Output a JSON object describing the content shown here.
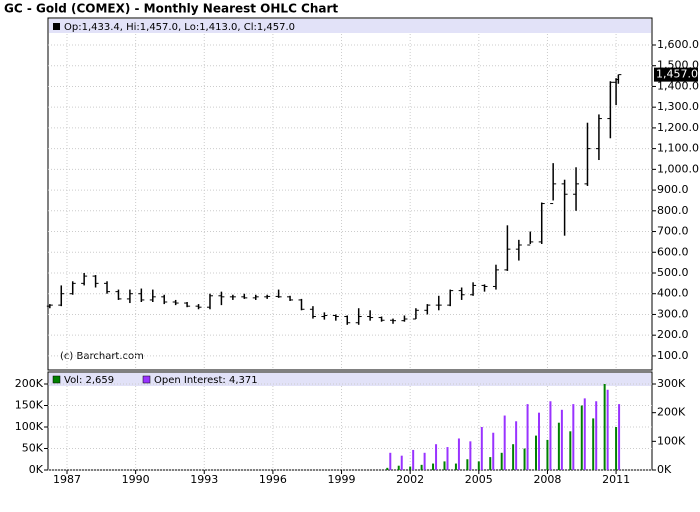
{
  "title": "GC - Gold (COMEX) - Monthly Nearest OHLC Chart",
  "chart_data": [
    {
      "type": "ohlc",
      "legend": "Op:1,433.4, Hi:1,457.0, Lo:1,413.0, Cl:1,457.0",
      "watermark": "(c) Barchart.com",
      "last_price_label": "1,457.0",
      "color": "#000000",
      "grid": true,
      "x": [
        1986.25,
        1986.75,
        1987.25,
        1987.75,
        1988.25,
        1988.75,
        1989.25,
        1989.75,
        1990.25,
        1990.75,
        1991.25,
        1991.75,
        1992.25,
        1992.75,
        1993.25,
        1993.75,
        1994.25,
        1994.75,
        1995.25,
        1995.75,
        1996.25,
        1996.75,
        1997.25,
        1997.75,
        1998.25,
        1998.75,
        1999.25,
        1999.75,
        2000.25,
        2000.75,
        2001.25,
        2001.75,
        2002.25,
        2002.75,
        2003.25,
        2003.75,
        2004.25,
        2004.75,
        2005.25,
        2005.75,
        2006.25,
        2006.75,
        2007.25,
        2007.75,
        2008.25,
        2008.75,
        2009.25,
        2009.75,
        2010.25,
        2010.75,
        2011.0,
        2011.1
      ],
      "open": [
        340,
        345,
        400,
        450,
        485,
        450,
        410,
        375,
        400,
        370,
        385,
        360,
        355,
        340,
        335,
        390,
        385,
        385,
        380,
        385,
        387,
        385,
        370,
        325,
        290,
        295,
        290,
        260,
        290,
        285,
        272,
        270,
        278,
        320,
        345,
        345,
        415,
        395,
        440,
        435,
        515,
        615,
        635,
        650,
        835,
        930,
        880,
        930,
        1100,
        1245,
        1420,
        1433.4
      ],
      "high": [
        350,
        440,
        460,
        500,
        490,
        460,
        420,
        420,
        425,
        420,
        395,
        370,
        360,
        350,
        400,
        410,
        395,
        400,
        395,
        395,
        420,
        390,
        375,
        340,
        310,
        300,
        295,
        330,
        320,
        290,
        280,
        295,
        330,
        350,
        390,
        420,
        430,
        455,
        445,
        540,
        730,
        660,
        700,
        840,
        1030,
        950,
        1010,
        1225,
        1265,
        1425,
        1440,
        1457
      ],
      "low": [
        330,
        340,
        395,
        440,
        430,
        400,
        370,
        355,
        360,
        360,
        350,
        345,
        335,
        325,
        325,
        345,
        370,
        375,
        370,
        375,
        380,
        365,
        320,
        280,
        275,
        270,
        250,
        250,
        270,
        265,
        255,
        265,
        278,
        300,
        320,
        340,
        370,
        390,
        410,
        420,
        510,
        560,
        640,
        640,
        850,
        680,
        800,
        920,
        1045,
        1150,
        1310,
        1413
      ],
      "close": [
        345,
        400,
        450,
        485,
        450,
        410,
        375,
        400,
        370,
        385,
        360,
        355,
        340,
        335,
        390,
        385,
        385,
        380,
        385,
        387,
        385,
        370,
        325,
        290,
        295,
        290,
        260,
        290,
        285,
        272,
        270,
        278,
        320,
        345,
        345,
        415,
        395,
        440,
        435,
        515,
        615,
        635,
        650,
        835,
        930,
        880,
        930,
        1100,
        1245,
        1420,
        1433.4,
        1457
      ],
      "xlim": [
        1986.17,
        2012.57
      ],
      "xticks": [
        1987,
        1990,
        1993,
        1996,
        1999,
        2002,
        2005,
        2008,
        2011
      ],
      "ylim": [
        32,
        1653
      ],
      "yticks": [
        {
          "value": 100,
          "label": "100.0"
        },
        {
          "value": 200,
          "label": "200.0"
        },
        {
          "value": 300,
          "label": "300.0"
        },
        {
          "value": 400,
          "label": "400.0"
        },
        {
          "value": 500,
          "label": "500.0"
        },
        {
          "value": 600,
          "label": "600.0"
        },
        {
          "value": 700,
          "label": "700.0"
        },
        {
          "value": 800,
          "label": "800.0"
        },
        {
          "value": 900,
          "label": "900.0"
        },
        {
          "value": 1000,
          "label": "1,000.0"
        },
        {
          "value": 1100,
          "label": "1,100.0"
        },
        {
          "value": 1200,
          "label": "1,200.0"
        },
        {
          "value": 1300,
          "label": "1,300.0"
        },
        {
          "value": 1400,
          "label": "1,400.0"
        },
        {
          "value": 1500,
          "label": "1,500.0"
        },
        {
          "value": 1600,
          "label": "1,600.0"
        }
      ]
    },
    {
      "type": "bar",
      "grid": true,
      "x": [
        2001.0,
        2001.5,
        2002.0,
        2002.5,
        2003.0,
        2003.5,
        2004.0,
        2004.5,
        2005.0,
        2005.5,
        2006.0,
        2006.5,
        2007.0,
        2007.5,
        2008.0,
        2008.5,
        2009.0,
        2009.5,
        2010.0,
        2010.5,
        2011.0
      ],
      "series": [
        {
          "name": "Vol: 2,659",
          "color": "#008000",
          "values": [
            5000,
            10000,
            8000,
            12000,
            15000,
            20000,
            15000,
            25000,
            20000,
            30000,
            40000,
            60000,
            50000,
            80000,
            70000,
            110000,
            90000,
            150000,
            120000,
            200000,
            100000
          ]
        },
        {
          "name": "Open Interest: 4,371",
          "color": "#9933ff",
          "axis": "y2",
          "values": [
            60000,
            50000,
            70000,
            60000,
            90000,
            80000,
            110000,
            100000,
            150000,
            130000,
            190000,
            170000,
            230000,
            200000,
            240000,
            210000,
            230000,
            250000,
            240000,
            280000,
            230000
          ]
        }
      ],
      "xlim": [
        1986.17,
        2012.57
      ],
      "xticks": [
        1987,
        1990,
        1993,
        1996,
        1999,
        2002,
        2005,
        2008,
        2011
      ],
      "ylim": [
        0,
        225600
      ],
      "yticks": [
        {
          "value": 0,
          "label": "0K"
        },
        {
          "value": 50000,
          "label": "50K"
        },
        {
          "value": 100000,
          "label": "100K"
        },
        {
          "value": 150000,
          "label": "150K"
        },
        {
          "value": 200000,
          "label": "200K"
        }
      ],
      "y2lim": [
        0,
        338400
      ],
      "y2ticks": [
        {
          "value": 0,
          "label": "0K"
        },
        {
          "value": 100000,
          "label": "100K"
        },
        {
          "value": 200000,
          "label": "200K"
        },
        {
          "value": 300000,
          "label": "300K"
        }
      ]
    }
  ]
}
